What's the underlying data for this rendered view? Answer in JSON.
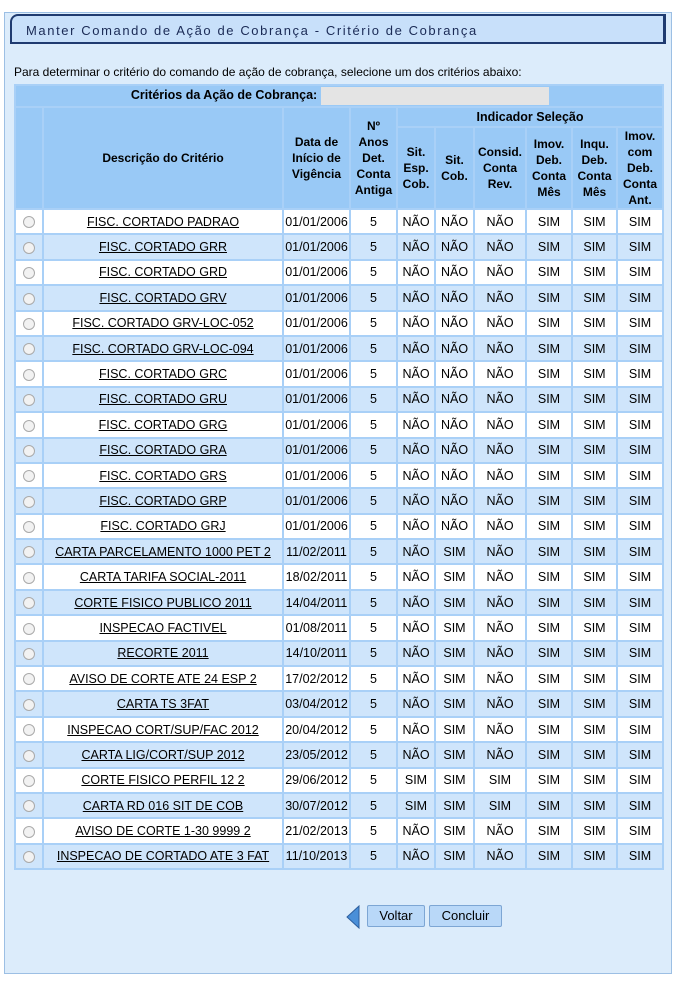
{
  "header": {
    "title": "Manter Comando de Ação de Cobrança - Critério de Cobrança"
  },
  "instruction": "Para determinar o critério do comando de ação de cobrança, selecione um dos critérios abaixo:",
  "criteria_label": "Critérios da Ação de Cobrança:",
  "table": {
    "group_header": "Indicador Seleção",
    "columns": [
      "Descrição do Critério",
      "Data de Início de Vigência",
      "Nº Anos Det. Conta Antiga",
      "Sit. Esp. Cob.",
      "Sit. Cob.",
      "Consid. Conta Rev.",
      "Imov. Deb. Conta Mês",
      "Inqu. Deb. Conta Mês",
      "Imov. com Deb. Conta Ant."
    ],
    "rows": [
      [
        "FISC. CORTADO PADRAO",
        "01/01/2006",
        5,
        "NÃO",
        "NÃO",
        "NÃO",
        "SIM",
        "SIM",
        "SIM"
      ],
      [
        "FISC. CORTADO GRR",
        "01/01/2006",
        5,
        "NÃO",
        "NÃO",
        "NÃO",
        "SIM",
        "SIM",
        "SIM"
      ],
      [
        "FISC. CORTADO GRD",
        "01/01/2006",
        5,
        "NÃO",
        "NÃO",
        "NÃO",
        "SIM",
        "SIM",
        "SIM"
      ],
      [
        "FISC. CORTADO GRV",
        "01/01/2006",
        5,
        "NÃO",
        "NÃO",
        "NÃO",
        "SIM",
        "SIM",
        "SIM"
      ],
      [
        "FISC. CORTADO GRV-LOC-052",
        "01/01/2006",
        5,
        "NÃO",
        "NÃO",
        "NÃO",
        "SIM",
        "SIM",
        "SIM"
      ],
      [
        "FISC. CORTADO GRV-LOC-094",
        "01/01/2006",
        5,
        "NÃO",
        "NÃO",
        "NÃO",
        "SIM",
        "SIM",
        "SIM"
      ],
      [
        "FISC. CORTADO GRC",
        "01/01/2006",
        5,
        "NÃO",
        "NÃO",
        "NÃO",
        "SIM",
        "SIM",
        "SIM"
      ],
      [
        "FISC. CORTADO GRU",
        "01/01/2006",
        5,
        "NÃO",
        "NÃO",
        "NÃO",
        "SIM",
        "SIM",
        "SIM"
      ],
      [
        "FISC. CORTADO GRG",
        "01/01/2006",
        5,
        "NÃO",
        "NÃO",
        "NÃO",
        "SIM",
        "SIM",
        "SIM"
      ],
      [
        "FISC. CORTADO GRA",
        "01/01/2006",
        5,
        "NÃO",
        "NÃO",
        "NÃO",
        "SIM",
        "SIM",
        "SIM"
      ],
      [
        "FISC. CORTADO GRS",
        "01/01/2006",
        5,
        "NÃO",
        "NÃO",
        "NÃO",
        "SIM",
        "SIM",
        "SIM"
      ],
      [
        "FISC. CORTADO GRP",
        "01/01/2006",
        5,
        "NÃO",
        "NÃO",
        "NÃO",
        "SIM",
        "SIM",
        "SIM"
      ],
      [
        "FISC. CORTADO GRJ",
        "01/01/2006",
        5,
        "NÃO",
        "NÃO",
        "NÃO",
        "SIM",
        "SIM",
        "SIM"
      ],
      [
        "CARTA PARCELAMENTO 1000 PET 2",
        "11/02/2011",
        5,
        "NÃO",
        "SIM",
        "NÃO",
        "SIM",
        "SIM",
        "SIM"
      ],
      [
        "CARTA TARIFA SOCIAL-2011",
        "18/02/2011",
        5,
        "NÃO",
        "SIM",
        "NÃO",
        "SIM",
        "SIM",
        "SIM"
      ],
      [
        "CORTE FISICO PUBLICO 2011",
        "14/04/2011",
        5,
        "NÃO",
        "SIM",
        "NÃO",
        "SIM",
        "SIM",
        "SIM"
      ],
      [
        "INSPECAO FACTIVEL",
        "01/08/2011",
        5,
        "NÃO",
        "SIM",
        "NÃO",
        "SIM",
        "SIM",
        "SIM"
      ],
      [
        "RECORTE 2011",
        "14/10/2011",
        5,
        "NÃO",
        "SIM",
        "NÃO",
        "SIM",
        "SIM",
        "SIM"
      ],
      [
        "AVISO DE CORTE ATE 24 ESP 2",
        "17/02/2012",
        5,
        "NÃO",
        "SIM",
        "NÃO",
        "SIM",
        "SIM",
        "SIM"
      ],
      [
        "CARTA TS 3FAT",
        "03/04/2012",
        5,
        "NÃO",
        "SIM",
        "NÃO",
        "SIM",
        "SIM",
        "SIM"
      ],
      [
        "INSPECAO CORT/SUP/FAC 2012",
        "20/04/2012",
        5,
        "NÃO",
        "SIM",
        "NÃO",
        "SIM",
        "SIM",
        "SIM"
      ],
      [
        "CARTA LIG/CORT/SUP 2012",
        "23/05/2012",
        5,
        "NÃO",
        "SIM",
        "NÃO",
        "SIM",
        "SIM",
        "SIM"
      ],
      [
        "CORTE FISICO PERFIL 12 2",
        "29/06/2012",
        5,
        "SIM",
        "SIM",
        "SIM",
        "SIM",
        "SIM",
        "SIM"
      ],
      [
        "CARTA RD 016 SIT DE COB",
        "30/07/2012",
        5,
        "SIM",
        "SIM",
        "SIM",
        "SIM",
        "SIM",
        "SIM"
      ],
      [
        "AVISO DE CORTE 1-30 9999 2",
        "21/02/2013",
        5,
        "NÃO",
        "SIM",
        "NÃO",
        "SIM",
        "SIM",
        "SIM"
      ],
      [
        "INSPECAO DE CORTADO ATE 3 FAT",
        "11/10/2013",
        5,
        "NÃO",
        "SIM",
        "NÃO",
        "SIM",
        "SIM",
        "SIM"
      ]
    ]
  },
  "buttons": {
    "back": "Voltar",
    "submit": "Concluir"
  }
}
